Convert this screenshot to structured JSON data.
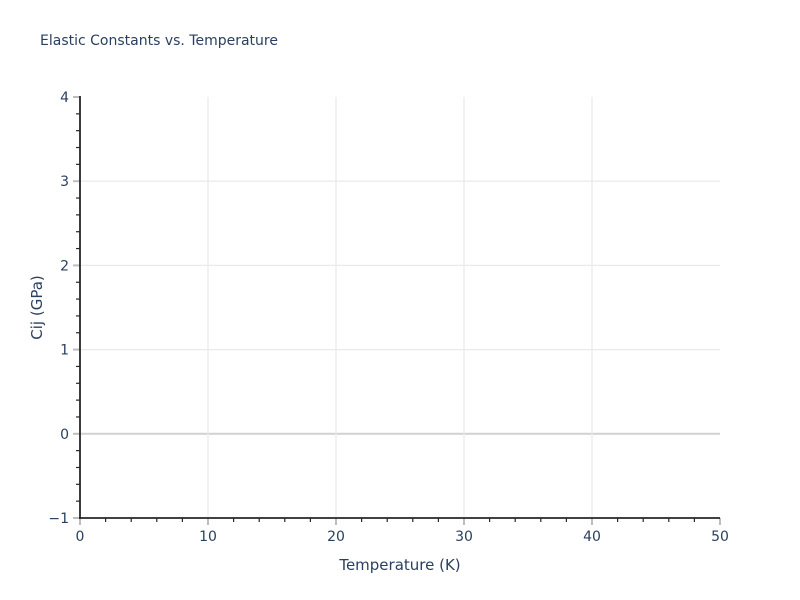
{
  "chart_data": {
    "type": "scatter",
    "title": "Elastic Constants vs. Temperature",
    "xlabel": "Temperature (K)",
    "ylabel": "Cij (GPa)",
    "xlim": [
      0,
      50
    ],
    "ylim": [
      -1,
      4
    ],
    "xticks": [
      0,
      10,
      20,
      30,
      40,
      50
    ],
    "yticks": [
      -1,
      0,
      1,
      2,
      3,
      4
    ],
    "x_minor_step": 2,
    "y_minor_step": 0.2,
    "grid": true,
    "zero_line_at": 0,
    "legend": false,
    "series": []
  },
  "style": {
    "background": "#ffffff",
    "text_color": "#2a3f5f",
    "axis_color": "#262626",
    "grid_color": "#e9e9e9",
    "zero_line_color": "#d2d2d2",
    "major_tick_color": "#bdbdbd",
    "minor_tick_color": "#262626",
    "title_font_size": 14,
    "tick_font_size": 14,
    "axis_label_font_size": 15
  }
}
